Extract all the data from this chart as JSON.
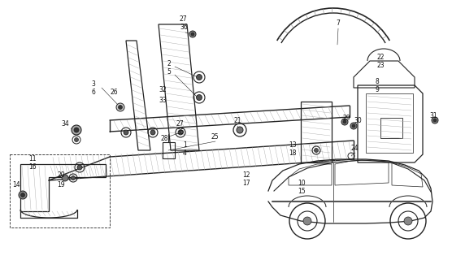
{
  "bg_color": "#ffffff",
  "line_color": "#222222",
  "fig_w": 5.56,
  "fig_h": 3.2,
  "dpi": 100
}
